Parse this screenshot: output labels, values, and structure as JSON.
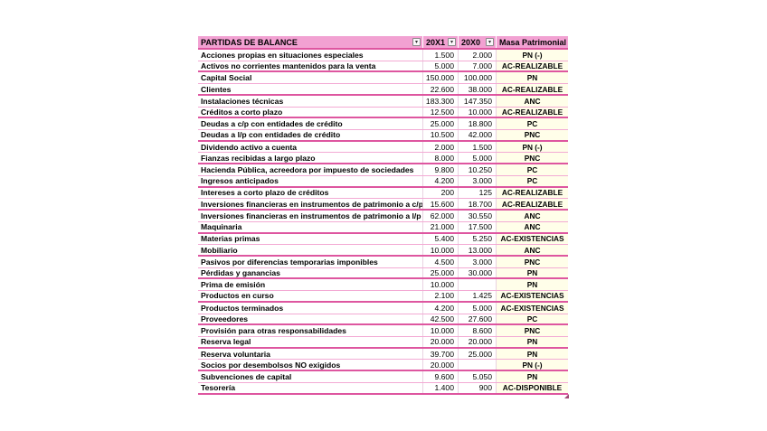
{
  "table": {
    "filter_icon": "▾",
    "headers": [
      {
        "label": "PARTIDAS DE BALANCE"
      },
      {
        "label": "20X1"
      },
      {
        "label": "20X0"
      },
      {
        "label": "Masa Patrimonial"
      }
    ],
    "rows": [
      {
        "name": "Acciones propias en situaciones especiales",
        "y1": "1.500",
        "y0": "2.000",
        "masa": "PN (-)"
      },
      {
        "name": "Activos no corrientes mantenidos para la venta",
        "y1": "5.000",
        "y0": "7.000",
        "masa": "AC-REALIZABLE"
      },
      {
        "name": "Capital Social",
        "y1": "150.000",
        "y0": "100.000",
        "masa": "PN"
      },
      {
        "name": "Clientes",
        "y1": "22.600",
        "y0": "38.000",
        "masa": "AC-REALIZABLE"
      },
      {
        "name": "Instalaciones técnicas",
        "y1": "183.300",
        "y0": "147.350",
        "masa": "ANC"
      },
      {
        "name": "Créditos a corto plazo",
        "y1": "12.500",
        "y0": "10.000",
        "masa": "AC-REALIZABLE"
      },
      {
        "name": "Deudas a c/p con entidades de crédito",
        "y1": "25.000",
        "y0": "18.800",
        "masa": "PC"
      },
      {
        "name": "Deudas a l/p con entidades de crédito",
        "y1": "10.500",
        "y0": "42.000",
        "masa": "PNC"
      },
      {
        "name": "Dividendo activo a cuenta",
        "y1": "2.000",
        "y0": "1.500",
        "masa": "PN (-)"
      },
      {
        "name": "Fianzas recibidas a largo plazo",
        "y1": "8.000",
        "y0": "5.000",
        "masa": "PNC"
      },
      {
        "name": "Hacienda Pública, acreedora por impuesto de sociedades",
        "y1": "9.800",
        "y0": "10.250",
        "masa": "PC"
      },
      {
        "name": "Ingresos anticipados",
        "y1": "4.200",
        "y0": "3.000",
        "masa": "PC"
      },
      {
        "name": "Intereses a corto plazo de créditos",
        "y1": "200",
        "y0": "125",
        "masa": "AC-REALIZABLE"
      },
      {
        "name": "Inversiones financieras en instrumentos de patrimonio a c/p",
        "y1": "15.600",
        "y0": "18.700",
        "masa": "AC-REALIZABLE"
      },
      {
        "name": "Inversiones financieras en instrumentos de patrimonio a l/p",
        "y1": "62.000",
        "y0": "30.550",
        "masa": "ANC"
      },
      {
        "name": "Maquinaria",
        "y1": "21.000",
        "y0": "17.500",
        "masa": "ANC"
      },
      {
        "name": "Materias primas",
        "y1": "5.400",
        "y0": "5.250",
        "masa": "AC-EXISTENCIAS"
      },
      {
        "name": "Mobiliario",
        "y1": "10.000",
        "y0": "13.000",
        "masa": "ANC"
      },
      {
        "name": "Pasivos por diferencias temporarias imponibles",
        "y1": "4.500",
        "y0": "3.000",
        "masa": "PNC"
      },
      {
        "name": "Pérdidas y ganancias",
        "y1": "25.000",
        "y0": "30.000",
        "masa": "PN"
      },
      {
        "name": "Prima de emisión",
        "y1": "10.000",
        "y0": "",
        "masa": "PN"
      },
      {
        "name": "Productos en curso",
        "y1": "2.100",
        "y0": "1.425",
        "masa": "AC-EXISTENCIAS"
      },
      {
        "name": "Productos terminados",
        "y1": "4.200",
        "y0": "5.000",
        "masa": "AC-EXISTENCIAS"
      },
      {
        "name": "Proveedores",
        "y1": "42.500",
        "y0": "27.600",
        "masa": "PC"
      },
      {
        "name": "Provisión para otras responsabilidades",
        "y1": "10.000",
        "y0": "8.600",
        "masa": "PNC"
      },
      {
        "name": "Reserva legal",
        "y1": "20.000",
        "y0": "20.000",
        "masa": "PN"
      },
      {
        "name": "Reserva voluntaria",
        "y1": "39.700",
        "y0": "25.000",
        "masa": "PN"
      },
      {
        "name": "Socios por desembolsos NO exigidos",
        "y1": "20.000",
        "y0": "",
        "masa": "PN (-)"
      },
      {
        "name": "Subvenciones de capital",
        "y1": "9.600",
        "y0": "5.050",
        "masa": "PN"
      },
      {
        "name": "Tesorería",
        "y1": "1.400",
        "y0": "900",
        "masa": "AC-DISPONIBLE"
      }
    ],
    "colors": {
      "header_bg": "#F2A1D2",
      "border_dark": "#DE56A0",
      "border_light": "#F3AAD4",
      "masa_column_bg": "#FFFEE9",
      "column_divider": "#E9D2E2",
      "resize_handle": "#9E4B75"
    }
  }
}
